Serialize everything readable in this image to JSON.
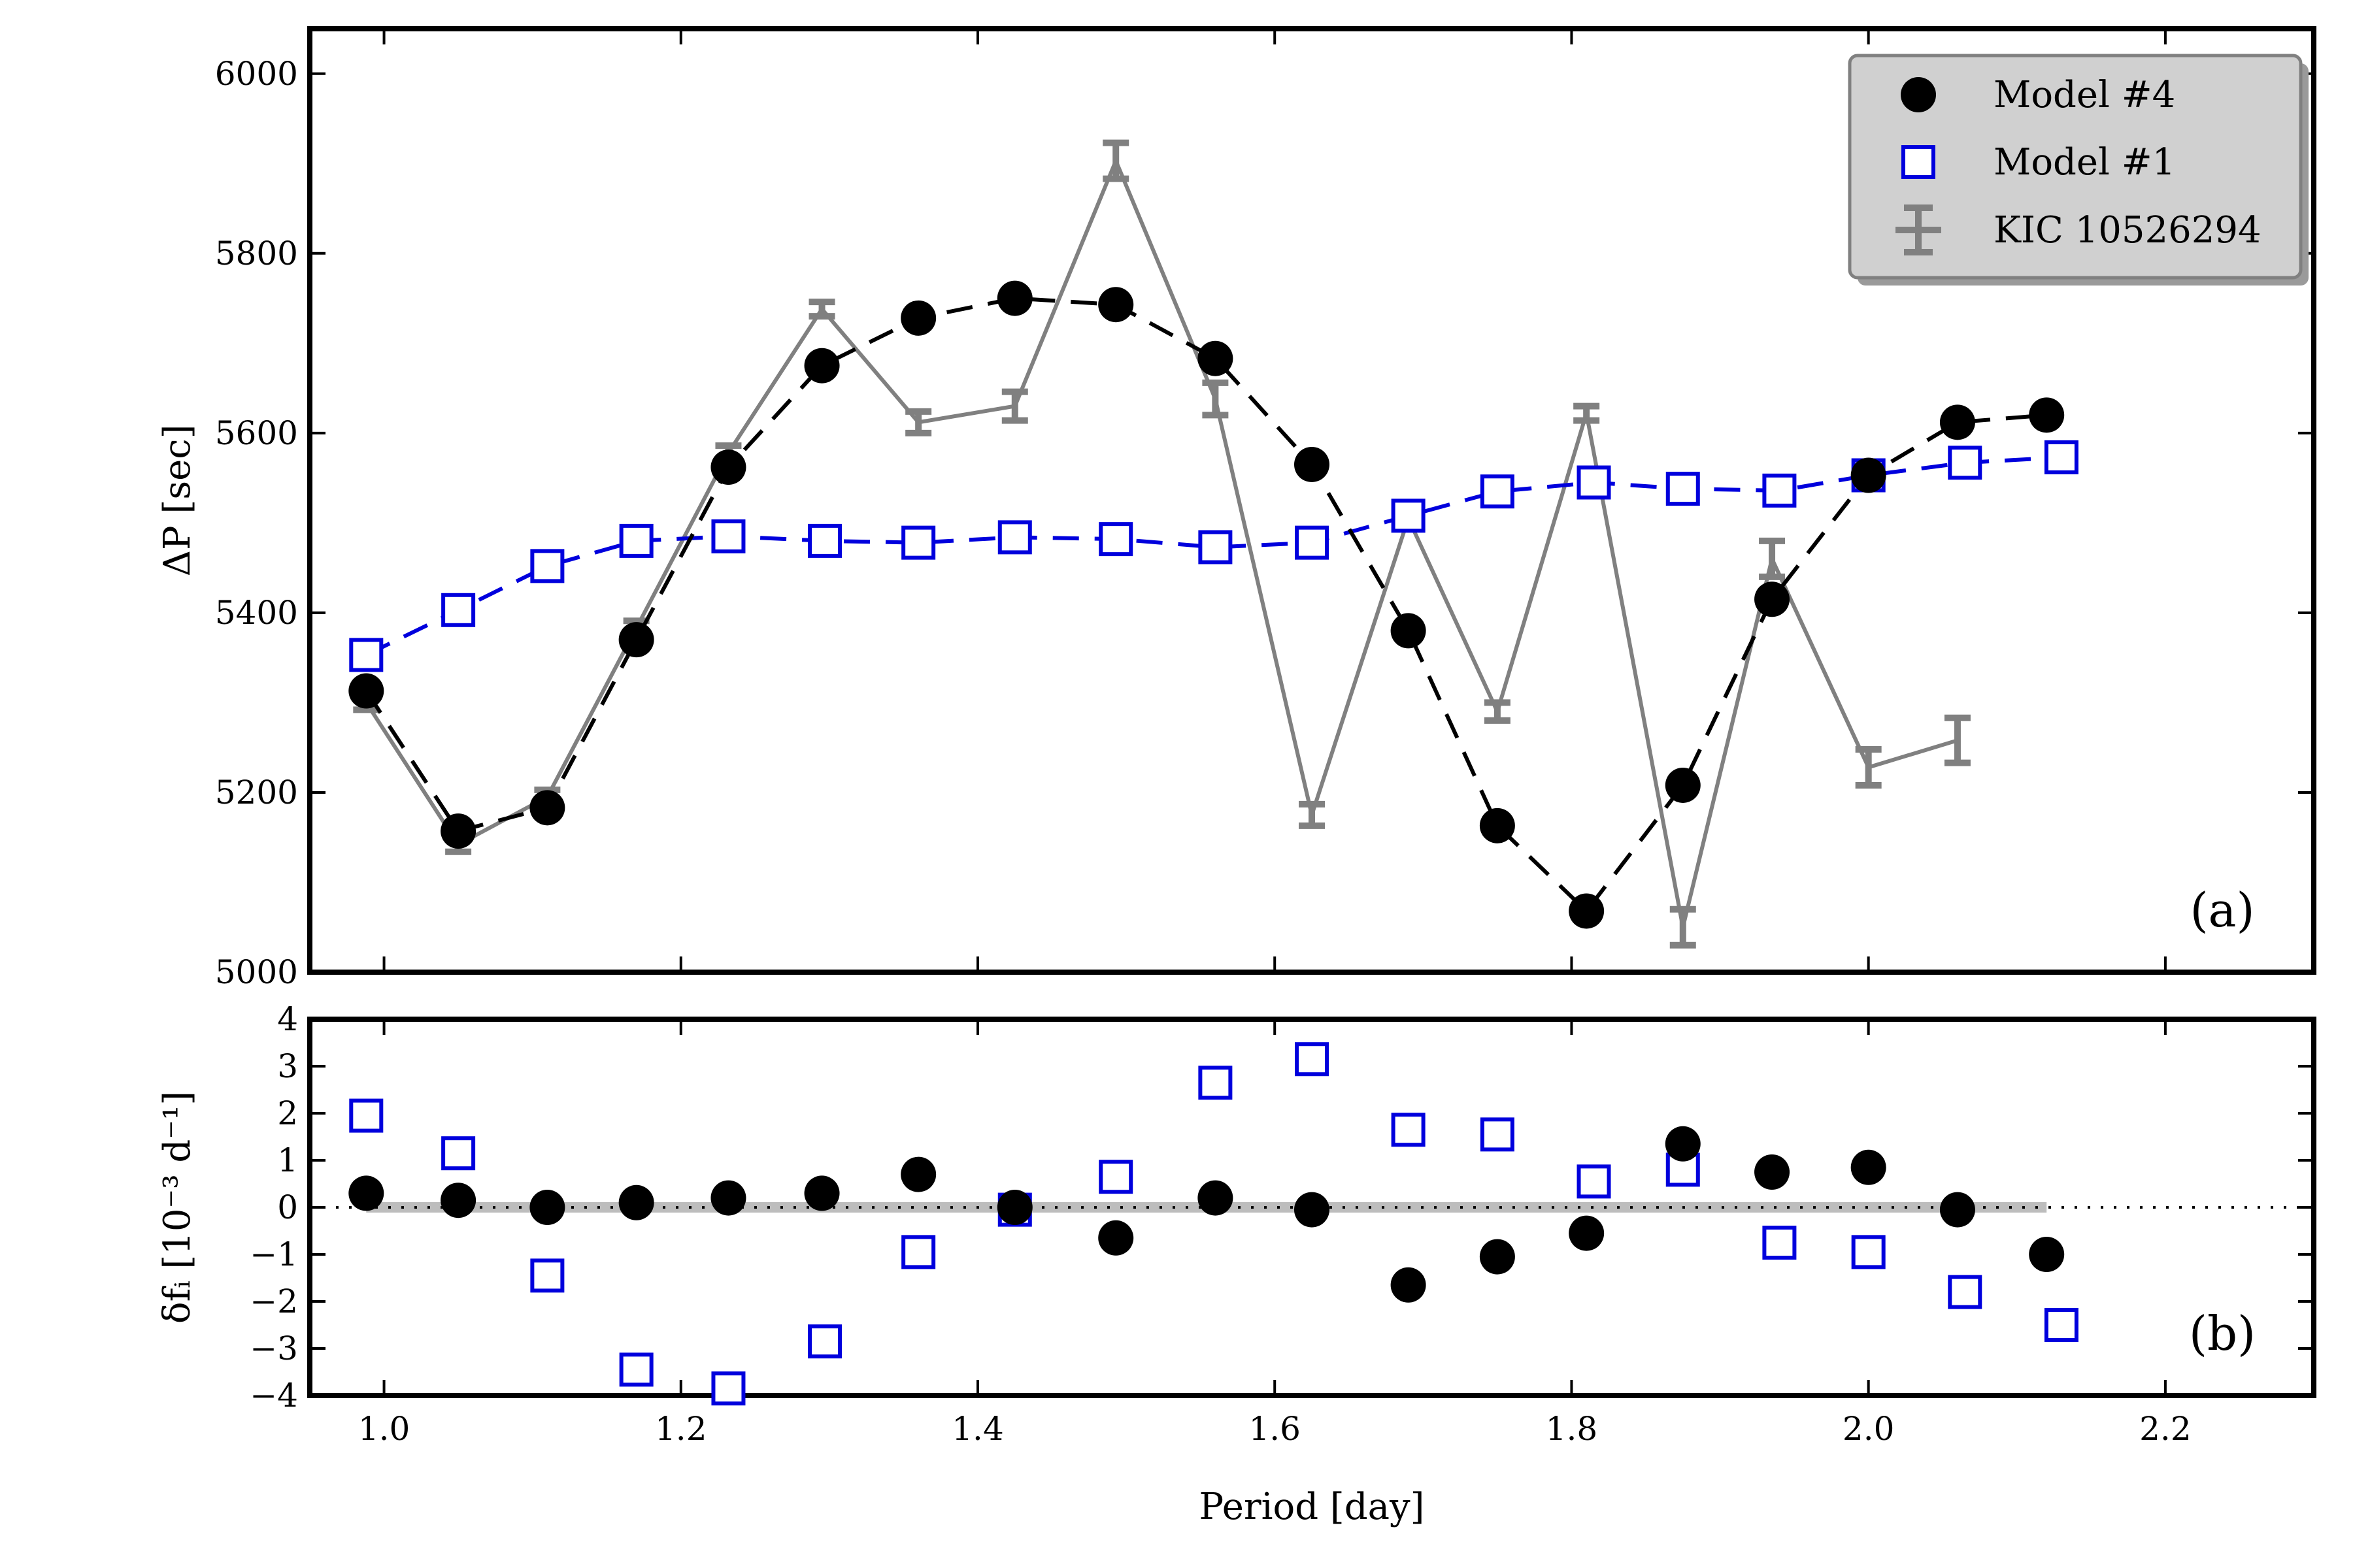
{
  "colors": {
    "model4": "#000000",
    "model1": "#0000dd",
    "kic": "#808080",
    "zero_band": "#bdbdbd",
    "legend_bg": "#d0d0d0"
  },
  "chart_data": [
    {
      "panel": "top",
      "type": "line",
      "panel_label": "(a)",
      "ylabel": "ΔP [sec]",
      "xlabel": "",
      "xlim": [
        0.95,
        2.3
      ],
      "ylim": [
        5000,
        6050
      ],
      "yticks": [
        5000,
        5200,
        5400,
        5600,
        5800,
        6000
      ],
      "ytick_labels": [
        "5000",
        "5200",
        "5400",
        "5600",
        "5800",
        "6000"
      ],
      "legend_position": "top-right",
      "legend": [
        {
          "key": "model4",
          "label": "Model #4"
        },
        {
          "key": "model1",
          "label": "Model #1"
        },
        {
          "key": "kic",
          "label": "KIC 10526294"
        }
      ],
      "series": [
        {
          "key": "model4",
          "name": "Model #4",
          "style": "dashed-circle",
          "x": [
            0.988,
            1.05,
            1.11,
            1.17,
            1.232,
            1.295,
            1.36,
            1.425,
            1.493,
            1.56,
            1.625,
            1.69,
            1.75,
            1.81,
            1.875,
            1.935,
            2.0,
            2.06,
            2.12
          ],
          "y": [
            5313,
            5157,
            5183,
            5370,
            5562,
            5675,
            5728,
            5750,
            5743,
            5683,
            5565,
            5380,
            5163,
            5068,
            5208,
            5415,
            5553,
            5612,
            5620
          ]
        },
        {
          "key": "model1",
          "name": "Model #1",
          "style": "dashed-square",
          "x": [
            0.988,
            1.05,
            1.11,
            1.17,
            1.232,
            1.297,
            1.36,
            1.425,
            1.493,
            1.56,
            1.625,
            1.69,
            1.75,
            1.815,
            1.875,
            1.94,
            2.0,
            2.065,
            2.13
          ],
          "y": [
            5353,
            5403,
            5452,
            5480,
            5485,
            5480,
            5478,
            5484,
            5482,
            5473,
            5478,
            5508,
            5535,
            5545,
            5538,
            5536,
            5553,
            5567,
            5573
          ]
        },
        {
          "key": "kic",
          "name": "KIC 10526294",
          "style": "errorbar",
          "segments": [
            {
              "x": [
                0.988,
                1.05,
                1.11,
                1.17,
                1.232,
                1.295,
                1.36,
                1.425,
                1.493,
                1.56,
                1.625,
                1.69,
                1.75,
                1.81,
                1.875,
                1.935,
                2.0,
                2.06
              ],
              "y": [
                5300,
                5142,
                5195,
                5383,
                5578,
                5738,
                5612,
                5630,
                5903,
                5638,
                5175,
                5505,
                5290,
                5622,
                5050,
                5460,
                5228,
                5258
              ],
              "yerr": [
                8,
                8,
                8,
                8,
                8,
                8,
                12,
                16,
                20,
                18,
                12,
                8,
                10,
                8,
                20,
                20,
                20,
                25
              ]
            }
          ]
        }
      ]
    },
    {
      "panel": "bottom",
      "type": "scatter",
      "panel_label": "(b)",
      "ylabel": "δfᵢ [10⁻³ d⁻¹]",
      "xlabel": "Period [day]",
      "xlim": [
        0.95,
        2.3
      ],
      "ylim": [
        -4,
        4
      ],
      "yticks": [
        -4,
        -3,
        -2,
        -1,
        0,
        1,
        2,
        3,
        4
      ],
      "ytick_labels": [
        "−4",
        "−3",
        "−2",
        "−1",
        "0",
        "1",
        "2",
        "3",
        "4"
      ],
      "xticks": [
        1.0,
        1.2,
        1.4,
        1.6,
        1.8,
        2.0,
        2.2
      ],
      "xtick_labels": [
        "1.0",
        "1.2",
        "1.4",
        "1.6",
        "1.8",
        "2.0",
        "2.2"
      ],
      "zero_line": {
        "band_from": 0.988,
        "band_to": 2.12,
        "y": 0
      },
      "series": [
        {
          "key": "model4",
          "name": "Model #4",
          "style": "circle",
          "x": [
            0.988,
            1.05,
            1.11,
            1.17,
            1.232,
            1.295,
            1.36,
            1.425,
            1.493,
            1.56,
            1.625,
            1.69,
            1.75,
            1.81,
            1.875,
            1.935,
            2.0,
            2.06,
            2.12
          ],
          "y": [
            0.3,
            0.15,
            0.0,
            0.1,
            0.2,
            0.3,
            0.7,
            0.0,
            -0.65,
            0.2,
            -0.05,
            -1.65,
            -1.05,
            -0.55,
            1.35,
            0.75,
            0.85,
            -0.05,
            -1.0
          ]
        },
        {
          "key": "model1",
          "name": "Model #1",
          "style": "square",
          "x": [
            0.988,
            1.05,
            1.11,
            1.17,
            1.232,
            1.297,
            1.36,
            1.425,
            1.493,
            1.56,
            1.625,
            1.69,
            1.75,
            1.815,
            1.875,
            1.94,
            2.0,
            2.065,
            2.13
          ],
          "y": [
            1.95,
            1.15,
            -1.45,
            -3.45,
            -3.85,
            -2.85,
            -0.95,
            -0.05,
            0.65,
            2.65,
            3.15,
            1.65,
            1.55,
            0.55,
            0.8,
            -0.75,
            -0.95,
            -1.8,
            -2.5
          ]
        }
      ]
    }
  ]
}
